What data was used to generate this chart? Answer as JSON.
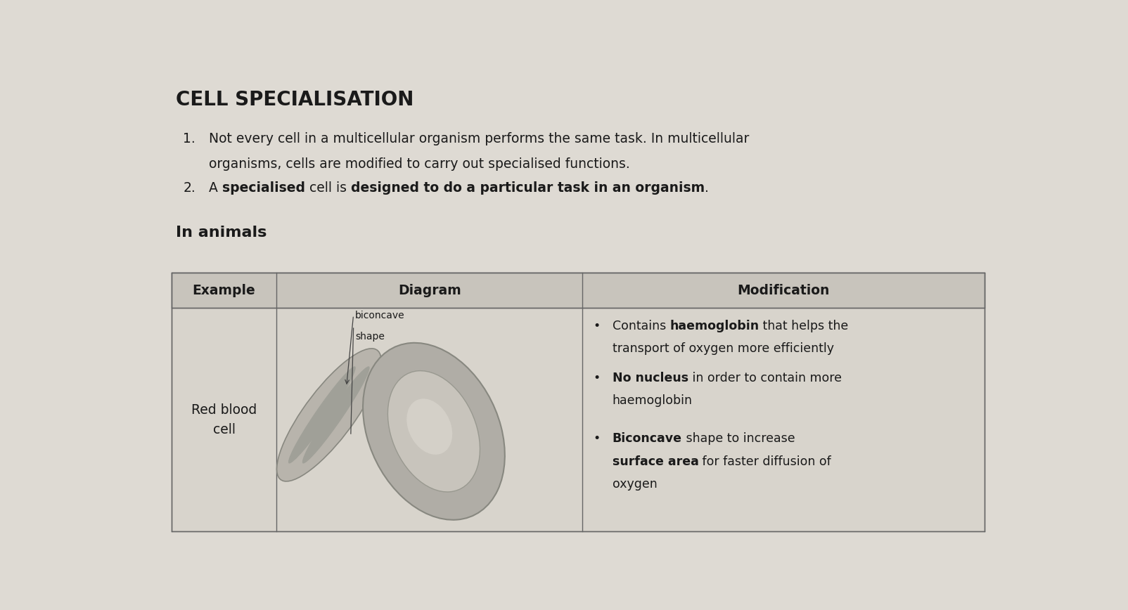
{
  "title": "CELL SPECIALISATION",
  "bg_color": "#c8c4bc",
  "page_bg": "#dedad3",
  "point1_line1": "Not every cell in a multicellular organism performs the same task. In multicellular",
  "point1_line2": "organisms, cells are modified to carry out specialised functions.",
  "point2_segments": [
    [
      "A ",
      false
    ],
    [
      "specialised",
      true
    ],
    [
      " cell is ",
      false
    ],
    [
      "designed to do a particular task in an organism",
      true
    ],
    [
      ".",
      false
    ]
  ],
  "section_title": "In animals",
  "col_headers": [
    "Example",
    "Diagram",
    "Modification"
  ],
  "example_text": "Red blood\ncell",
  "diagram_label": "biconcave\nshape",
  "mod_lines": [
    [
      [
        "Contains ",
        false
      ],
      [
        "haemoglobin",
        true
      ],
      [
        " that helps the",
        false
      ]
    ],
    [
      [
        "transport of oxygen more efficiently",
        false
      ]
    ],
    [
      [
        "No nucleus",
        true
      ],
      [
        " in order to contain more",
        false
      ]
    ],
    [
      [
        "haemoglobin",
        false
      ]
    ],
    [
      [
        "Biconcave",
        true
      ],
      [
        " shape to increase",
        false
      ]
    ],
    [
      [
        "surface area",
        true
      ],
      [
        " for faster diffusion of",
        false
      ]
    ],
    [
      [
        "oxygen",
        false
      ]
    ]
  ],
  "text_color": "#1a1a1a",
  "table_border_color": "#666666",
  "table_bg": "#d8d4cc",
  "header_bg": "#c8c4bc"
}
